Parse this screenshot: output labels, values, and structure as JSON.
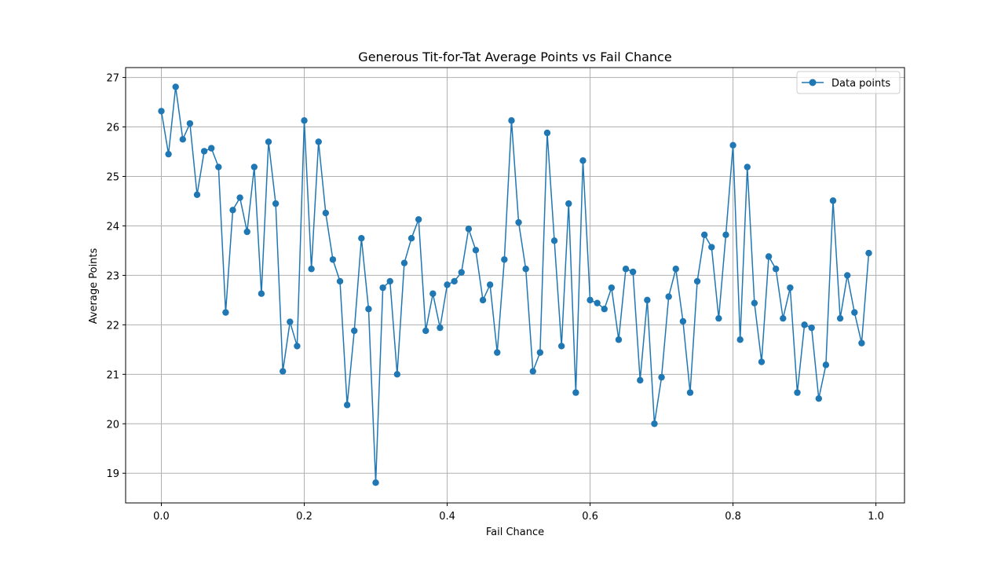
{
  "chart_data": {
    "type": "line",
    "title": "Generous Tit-for-Tat Average Points vs Fail Chance",
    "xlabel": "Fail Chance",
    "ylabel": "Average Points",
    "xlim": [
      -0.05,
      1.04
    ],
    "ylim": [
      18.4,
      27.2
    ],
    "xticks": [
      0.0,
      0.2,
      0.4,
      0.6,
      0.8,
      1.0
    ],
    "xtick_labels": [
      "0.0",
      "0.2",
      "0.4",
      "0.6",
      "0.8",
      "1.0"
    ],
    "yticks": [
      19,
      20,
      21,
      22,
      23,
      24,
      25,
      26,
      27
    ],
    "ytick_labels": [
      "19",
      "20",
      "21",
      "22",
      "23",
      "24",
      "25",
      "26",
      "27"
    ],
    "grid": true,
    "legend_position": "top-right",
    "series": [
      {
        "name": "Data points",
        "color": "#1f77b4",
        "marker": "circle",
        "x": [
          0.0,
          0.01,
          0.02,
          0.03,
          0.04,
          0.05,
          0.06,
          0.07,
          0.08,
          0.09,
          0.1,
          0.11,
          0.12,
          0.13,
          0.14,
          0.15,
          0.16,
          0.17,
          0.18,
          0.19,
          0.2,
          0.21,
          0.22,
          0.23,
          0.24,
          0.25,
          0.26,
          0.27,
          0.28,
          0.29,
          0.3,
          0.31,
          0.32,
          0.33,
          0.34,
          0.35,
          0.36,
          0.37,
          0.38,
          0.39,
          0.4,
          0.41,
          0.42,
          0.43,
          0.44,
          0.45,
          0.46,
          0.47,
          0.48,
          0.49,
          0.5,
          0.51,
          0.52,
          0.53,
          0.54,
          0.55,
          0.56,
          0.57,
          0.58,
          0.59,
          0.6,
          0.61,
          0.62,
          0.63,
          0.64,
          0.65,
          0.66,
          0.67,
          0.68,
          0.69,
          0.7,
          0.71,
          0.72,
          0.73,
          0.74,
          0.75,
          0.76,
          0.77,
          0.78,
          0.79,
          0.8,
          0.81,
          0.82,
          0.83,
          0.84,
          0.85,
          0.86,
          0.87,
          0.88,
          0.89,
          0.9,
          0.91,
          0.92,
          0.93,
          0.94,
          0.95,
          0.96,
          0.97,
          0.98,
          0.99
        ],
        "y": [
          26.32,
          25.45,
          26.81,
          25.75,
          26.07,
          24.63,
          25.51,
          25.57,
          25.19,
          22.25,
          24.32,
          24.57,
          23.88,
          25.19,
          22.63,
          25.7,
          24.45,
          21.06,
          22.06,
          21.57,
          26.13,
          23.13,
          25.7,
          24.26,
          23.32,
          22.88,
          20.38,
          21.88,
          23.75,
          22.32,
          18.81,
          22.75,
          22.88,
          21.0,
          23.25,
          23.75,
          24.13,
          21.88,
          22.63,
          21.94,
          22.81,
          22.88,
          23.06,
          23.94,
          23.51,
          22.5,
          22.81,
          21.44,
          23.32,
          26.13,
          24.07,
          23.13,
          21.06,
          21.44,
          25.88,
          23.7,
          21.57,
          24.45,
          20.63,
          25.32,
          22.5,
          22.44,
          22.32,
          22.75,
          21.7,
          23.13,
          23.07,
          20.88,
          22.5,
          20.0,
          20.94,
          22.57,
          23.13,
          22.07,
          20.63,
          22.88,
          23.82,
          23.57,
          22.13,
          23.82,
          25.63,
          21.7,
          25.19,
          22.44,
          21.25,
          23.38,
          23.13,
          22.13,
          22.75,
          20.63,
          22.0,
          21.94,
          20.51,
          21.19,
          24.51,
          22.13,
          23.0,
          22.25,
          21.63,
          23.45
        ]
      }
    ]
  }
}
